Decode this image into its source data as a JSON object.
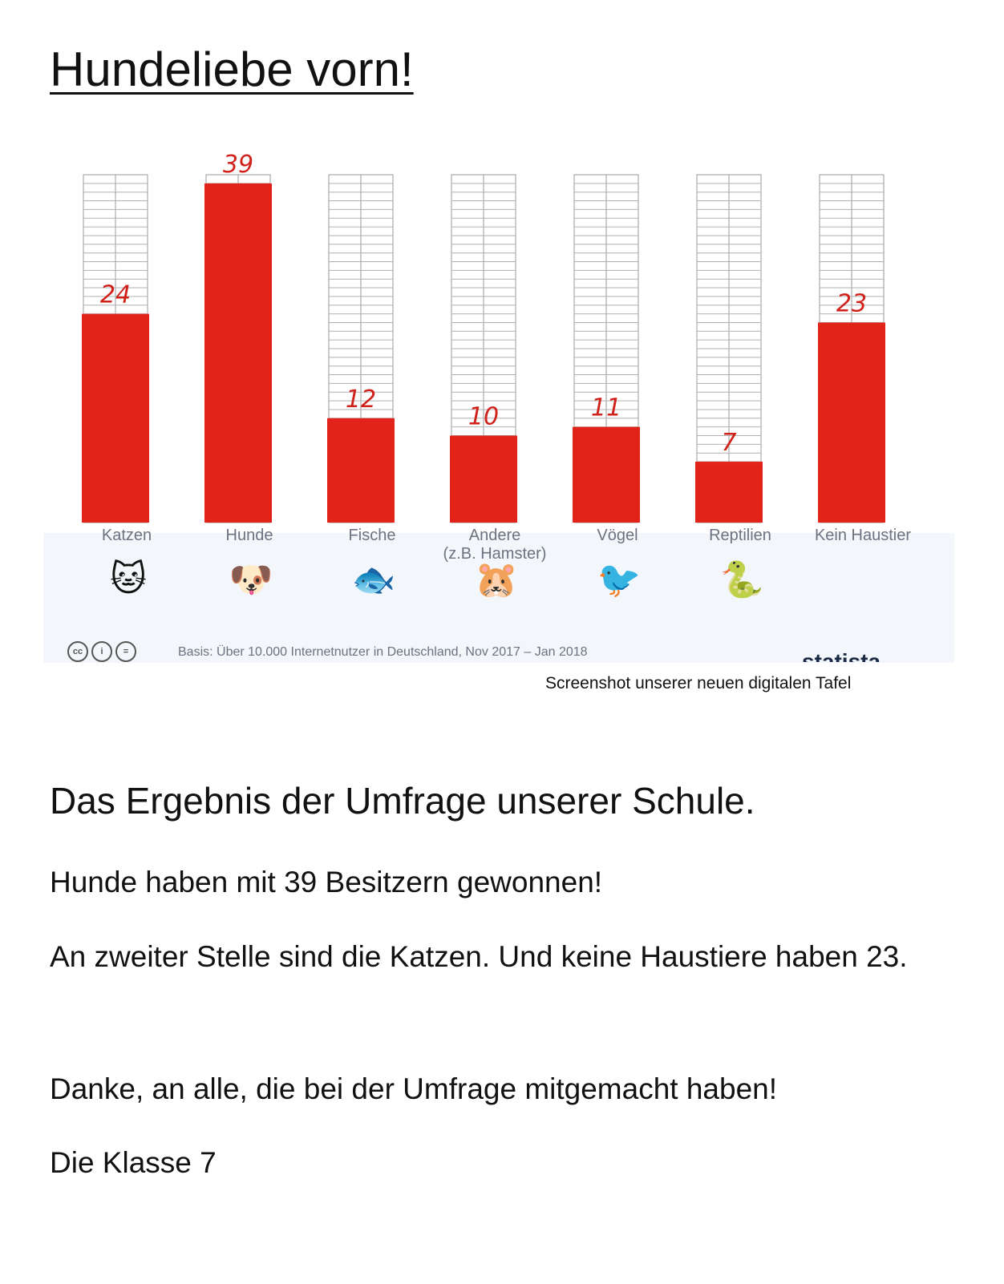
{
  "title": "Hundeliebe vorn!",
  "chart_data": {
    "type": "bar",
    "categories": [
      "Katzen",
      "Hunde",
      "Fische",
      "Andere\n(z.B. Hamster)",
      "Vögel",
      "Reptilien",
      "Kein Haustier"
    ],
    "values": [
      24,
      39,
      12,
      10,
      11,
      7,
      23
    ],
    "ylim": [
      0,
      40
    ],
    "grid": true,
    "bar_color": "#e2231a",
    "label_color": "#d0221b"
  },
  "icons": [
    "cat-icon",
    "dog-icon",
    "fish-icon",
    "hamster-icon",
    "bird-icon",
    "snake-icon"
  ],
  "source_note": "Basis: Über 10.000 Internetnutzer in Deutschland, Nov 2017 – Jan 2018",
  "brand": "statista",
  "caption": "Screenshot unserer neuen digitalen Tafel",
  "heading": "Das Ergebnis der Umfrage unserer Schule.",
  "paragraphs": [
    "Hunde haben mit 39 Besitzern gewonnen!",
    "An zweiter Stelle sind die Katzen. Und keine Haustiere haben 23.",
    "Danke, an alle, die bei der Umfrage mitgemacht haben!",
    "Die Klasse 7"
  ]
}
